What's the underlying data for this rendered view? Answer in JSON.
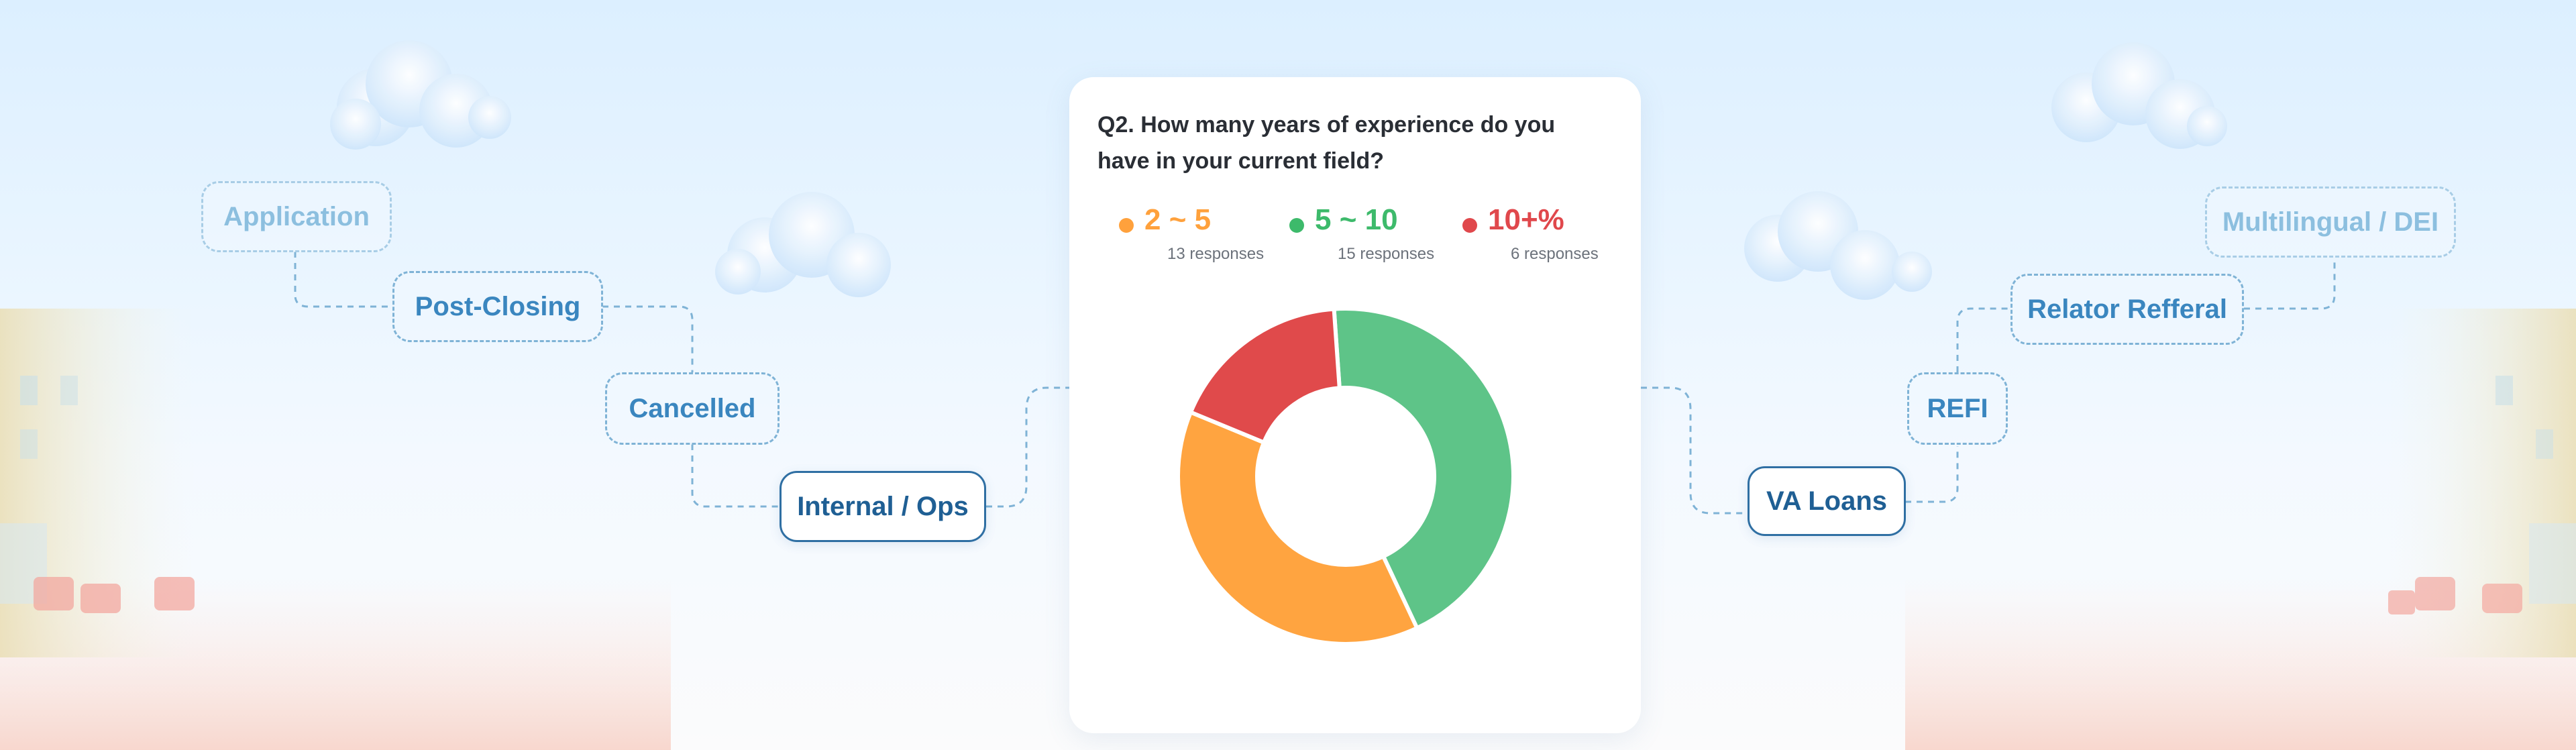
{
  "question": "Q2. How many years of experience do you have in your current field?",
  "legend": [
    {
      "label": "2 ~ 5",
      "responses": "13 responses",
      "color": "#ffa13c"
    },
    {
      "label": "5 ~ 10",
      "responses": "15 responses",
      "color": "#3dba6b"
    },
    {
      "label": "10+%",
      "responses": "6 responses",
      "color": "#e0484c"
    }
  ],
  "chart_data": {
    "type": "pie",
    "donut": true,
    "categories": [
      "5 ~ 10",
      "2 ~ 5",
      "10+%"
    ],
    "values": [
      15,
      13,
      6
    ],
    "colors": [
      "#5ec488",
      "#ffa440",
      "#e04a4b"
    ],
    "legend": "top"
  },
  "left_tags": {
    "application": "Application",
    "post_closing": "Post-Closing",
    "cancelled": "Cancelled",
    "internal_ops": "Internal / Ops"
  },
  "right_tags": {
    "multilingual": "Multilingual / DEI",
    "relator": "Relator Refferal",
    "refi": "REFI",
    "va_loans": "VA Loans"
  }
}
